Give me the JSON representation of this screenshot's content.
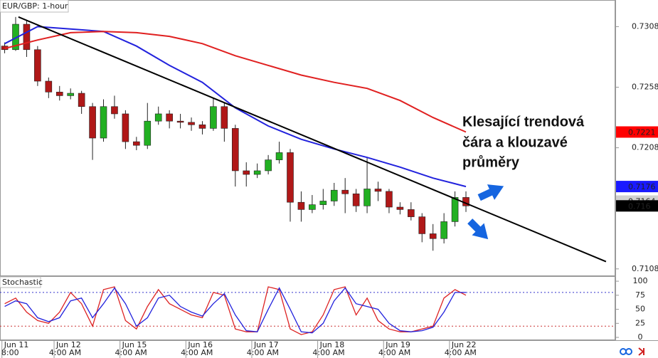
{
  "chart_data": [
    {
      "type": "candlestick",
      "title": "EUR/GBP: 1-hour",
      "x": [
        6,
        10,
        14,
        18,
        22,
        26,
        30,
        34,
        38,
        42,
        46,
        50,
        54,
        58,
        62,
        66,
        70,
        74,
        78,
        82,
        86,
        90,
        94,
        98,
        102,
        106,
        110,
        114,
        118,
        122,
        126,
        130,
        134,
        138,
        142,
        146,
        150,
        154,
        158,
        162,
        166,
        170,
        174
      ],
      "open": [
        0.7292,
        0.7289,
        0.731,
        0.7289,
        0.7263,
        0.7254,
        0.7251,
        0.7253,
        0.7242,
        0.7216,
        0.7242,
        0.7236,
        0.7213,
        0.721,
        0.723,
        0.7236,
        0.723,
        0.7229,
        0.7227,
        0.7224,
        0.7242,
        0.7224,
        0.7189,
        0.7186,
        0.7189,
        0.7198,
        0.7204,
        0.7163,
        0.7157,
        0.7161,
        0.7164,
        0.7173,
        0.717,
        0.716,
        0.7174,
        0.7172,
        0.7159,
        0.7157,
        0.7151,
        0.7137,
        0.7133,
        0.7147,
        0.7167
      ],
      "high": [
        0.7295,
        0.7316,
        0.7313,
        0.7292,
        0.7266,
        0.7259,
        0.7257,
        0.7255,
        0.7245,
        0.7248,
        0.7251,
        0.7239,
        0.7217,
        0.7245,
        0.7242,
        0.7239,
        0.7236,
        0.7233,
        0.723,
        0.7249,
        0.7245,
        0.7227,
        0.7196,
        0.7195,
        0.7202,
        0.7213,
        0.7207,
        0.7172,
        0.7169,
        0.7174,
        0.7179,
        0.7183,
        0.7174,
        0.72,
        0.718,
        0.7174,
        0.7163,
        0.7163,
        0.7154,
        0.7145,
        0.7154,
        0.7172,
        0.7172
      ],
      "low": [
        0.7286,
        0.7288,
        0.7283,
        0.7259,
        0.7249,
        0.7247,
        0.7248,
        0.7236,
        0.7198,
        0.7213,
        0.7232,
        0.7207,
        0.7206,
        0.7207,
        0.7227,
        0.7224,
        0.7224,
        0.7222,
        0.7219,
        0.7222,
        0.7213,
        0.7176,
        0.7176,
        0.7183,
        0.7186,
        0.7195,
        0.7147,
        0.7147,
        0.7154,
        0.7157,
        0.716,
        0.7154,
        0.7155,
        0.7154,
        0.7164,
        0.7154,
        0.7153,
        0.7148,
        0.713,
        0.7123,
        0.7129,
        0.7143,
        0.7155
      ],
      "close": [
        0.7289,
        0.731,
        0.7289,
        0.7263,
        0.7254,
        0.7251,
        0.7253,
        0.7242,
        0.7216,
        0.7242,
        0.7236,
        0.7213,
        0.721,
        0.723,
        0.7236,
        0.723,
        0.7229,
        0.7227,
        0.7224,
        0.7242,
        0.7224,
        0.7189,
        0.7186,
        0.7189,
        0.7198,
        0.7204,
        0.7163,
        0.7157,
        0.7161,
        0.7164,
        0.7173,
        0.717,
        0.716,
        0.7174,
        0.7172,
        0.7159,
        0.7157,
        0.7151,
        0.7137,
        0.7133,
        0.7147,
        0.7167,
        0.716
      ],
      "up_color": "#22b022",
      "down_color": "#b01818",
      "lines": [
        {
          "color": "#2222dd",
          "x": [
            6,
            18,
            30,
            42,
            54,
            66,
            78,
            90,
            102,
            114,
            126,
            138,
            150,
            162,
            174
          ],
          "values": [
            0.7294,
            0.7308,
            0.7306,
            0.7304,
            0.7292,
            0.7276,
            0.7262,
            0.7241,
            0.7226,
            0.7215,
            0.7207,
            0.72,
            0.7192,
            0.7183,
            0.7176
          ]
        },
        {
          "color": "#e02020",
          "x": [
            6,
            18,
            30,
            42,
            54,
            66,
            78,
            90,
            102,
            114,
            126,
            138,
            150,
            162,
            174
          ],
          "values": [
            0.729,
            0.7297,
            0.7303,
            0.7304,
            0.7303,
            0.73,
            0.7294,
            0.7284,
            0.7276,
            0.7268,
            0.7262,
            0.7257,
            0.7247,
            0.7233,
            0.7221
          ]
        }
      ],
      "trendline": {
        "color": "#000000",
        "x": [
          11,
          225
        ],
        "values": [
          0.7316,
          0.7114
        ]
      },
      "xlim": [
        4.3,
        228.4
      ],
      "ylim": [
        0.7102,
        0.733
      ],
      "yticks": [
        0.7108,
        0.7208,
        0.7258,
        0.7308
      ],
      "price_tags": [
        {
          "value": 0.7221,
          "color": "#ff0000",
          "text_color": "#ffffff"
        },
        {
          "value": 0.7176,
          "color": "#1a1aff",
          "text_color": "#ffffff"
        },
        {
          "value": 0.7164,
          "color": "#d0d0d0",
          "text_color": "#000000"
        },
        {
          "value": 0.716,
          "color": "#000000",
          "text_color": "#ffffff"
        }
      ],
      "annotation": [
        "Klesající trendová",
        "čára a klouzavé",
        "průměry"
      ]
    },
    {
      "type": "line",
      "title": "Stochastic",
      "series": [
        {
          "color": "#dd2222",
          "values": [
            60,
            70,
            45,
            30,
            25,
            45,
            80,
            60,
            20,
            85,
            90,
            30,
            15,
            55,
            85,
            60,
            50,
            40,
            35,
            80,
            75,
            15,
            10,
            10,
            90,
            85,
            15,
            5,
            10,
            40,
            85,
            90,
            40,
            70,
            30,
            15,
            10,
            10,
            15,
            20,
            70,
            85,
            75
          ]
        },
        {
          "color": "#2222dd",
          "values": [
            55,
            65,
            60,
            35,
            28,
            35,
            65,
            70,
            35,
            60,
            88,
            60,
            20,
            35,
            70,
            75,
            55,
            45,
            38,
            60,
            78,
            40,
            12,
            10,
            50,
            88,
            50,
            10,
            8,
            25,
            65,
            88,
            60,
            55,
            50,
            25,
            12,
            10,
            12,
            18,
            45,
            80,
            80
          ]
        }
      ],
      "levels": [
        {
          "value": 80,
          "color": "#3333cc"
        },
        {
          "value": 20,
          "color": "#cc3333"
        }
      ],
      "ylim": [
        -5,
        109
      ],
      "yticks": [
        0,
        25,
        50,
        75,
        100
      ],
      "xticks": [
        {
          "value": 5,
          "label": "Jun 11"
        },
        {
          "value": 24,
          "label": "Jun 12"
        },
        {
          "value": 48,
          "label": "Jun 15"
        },
        {
          "value": 72,
          "label": "Jun 16"
        },
        {
          "value": 96,
          "label": "Jun 17"
        },
        {
          "value": 120,
          "label": "Jun 18"
        },
        {
          "value": 144,
          "label": "Jun 19"
        },
        {
          "value": 168,
          "label": "Jun 22"
        }
      ],
      "xticks_time": [
        {
          "value": 8,
          "label": "8:00"
        },
        {
          "value": 28,
          "label": "4:00 AM"
        },
        {
          "value": 52,
          "label": "4:00 AM"
        },
        {
          "value": 76,
          "label": "4:00 AM"
        },
        {
          "value": 100,
          "label": "4:00 AM"
        },
        {
          "value": 124,
          "label": "4:00 AM"
        },
        {
          "value": 148,
          "label": "4:00 AM"
        },
        {
          "value": 172,
          "label": "4:00 AM"
        }
      ]
    }
  ]
}
